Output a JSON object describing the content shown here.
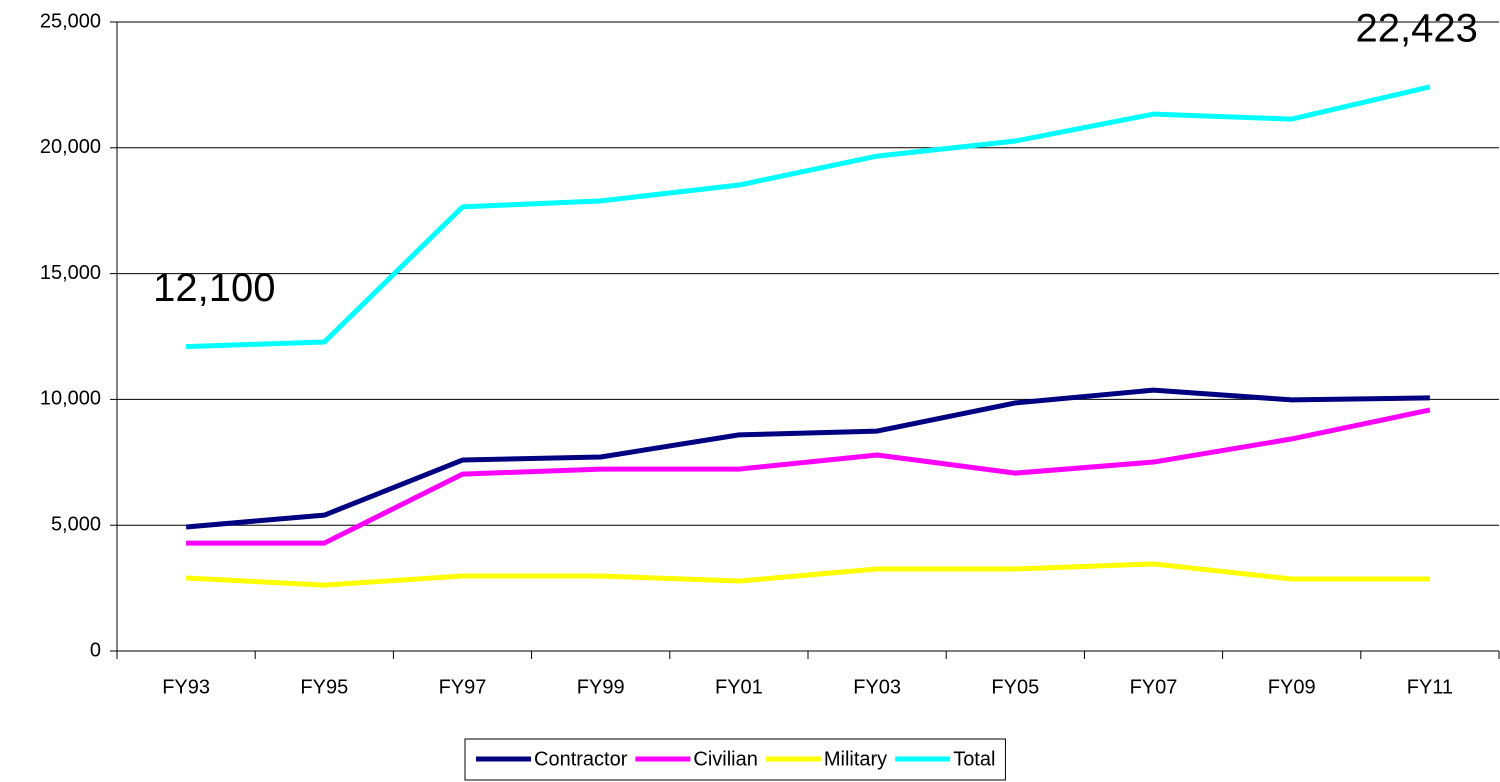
{
  "chart_data": {
    "type": "line",
    "categories": [
      "FY93",
      "FY95",
      "FY97",
      "FY99",
      "FY01",
      "FY03",
      "FY05",
      "FY07",
      "FY09",
      "FY11"
    ],
    "series": [
      {
        "name": "Contractor",
        "color": "#000080",
        "values": [
          4930,
          5400,
          7590,
          7710,
          8590,
          8740,
          9860,
          10370,
          9980,
          10060
        ]
      },
      {
        "name": "Civilian",
        "color": "#ff00ff",
        "values": [
          4290,
          4290,
          7030,
          7230,
          7230,
          7790,
          7070,
          7510,
          8430,
          9580
        ]
      },
      {
        "name": "Military",
        "color": "#ffff00",
        "values": [
          2900,
          2620,
          2980,
          2980,
          2780,
          3260,
          3260,
          3460,
          2860,
          2860
        ]
      },
      {
        "name": "Total",
        "color": "#00ffff",
        "values": [
          12100,
          12280,
          17650,
          17890,
          18520,
          19670,
          20270,
          21340,
          21140,
          22423
        ],
        "value_labels": [
          "12,100",
          null,
          null,
          null,
          null,
          null,
          null,
          null,
          null,
          "22,423"
        ]
      }
    ],
    "ylim": [
      0,
      25000
    ],
    "yticks": [
      0,
      {
        "value": 5000,
        "label": "5,000"
      },
      {
        "value": 10000,
        "label": "10,000"
      },
      {
        "value": 15000,
        "label": "15,000"
      },
      {
        "value": 20000,
        "label": "20,000"
      },
      {
        "value": 25000,
        "label": "25,000"
      }
    ],
    "grid": true,
    "legend": "bottom"
  }
}
